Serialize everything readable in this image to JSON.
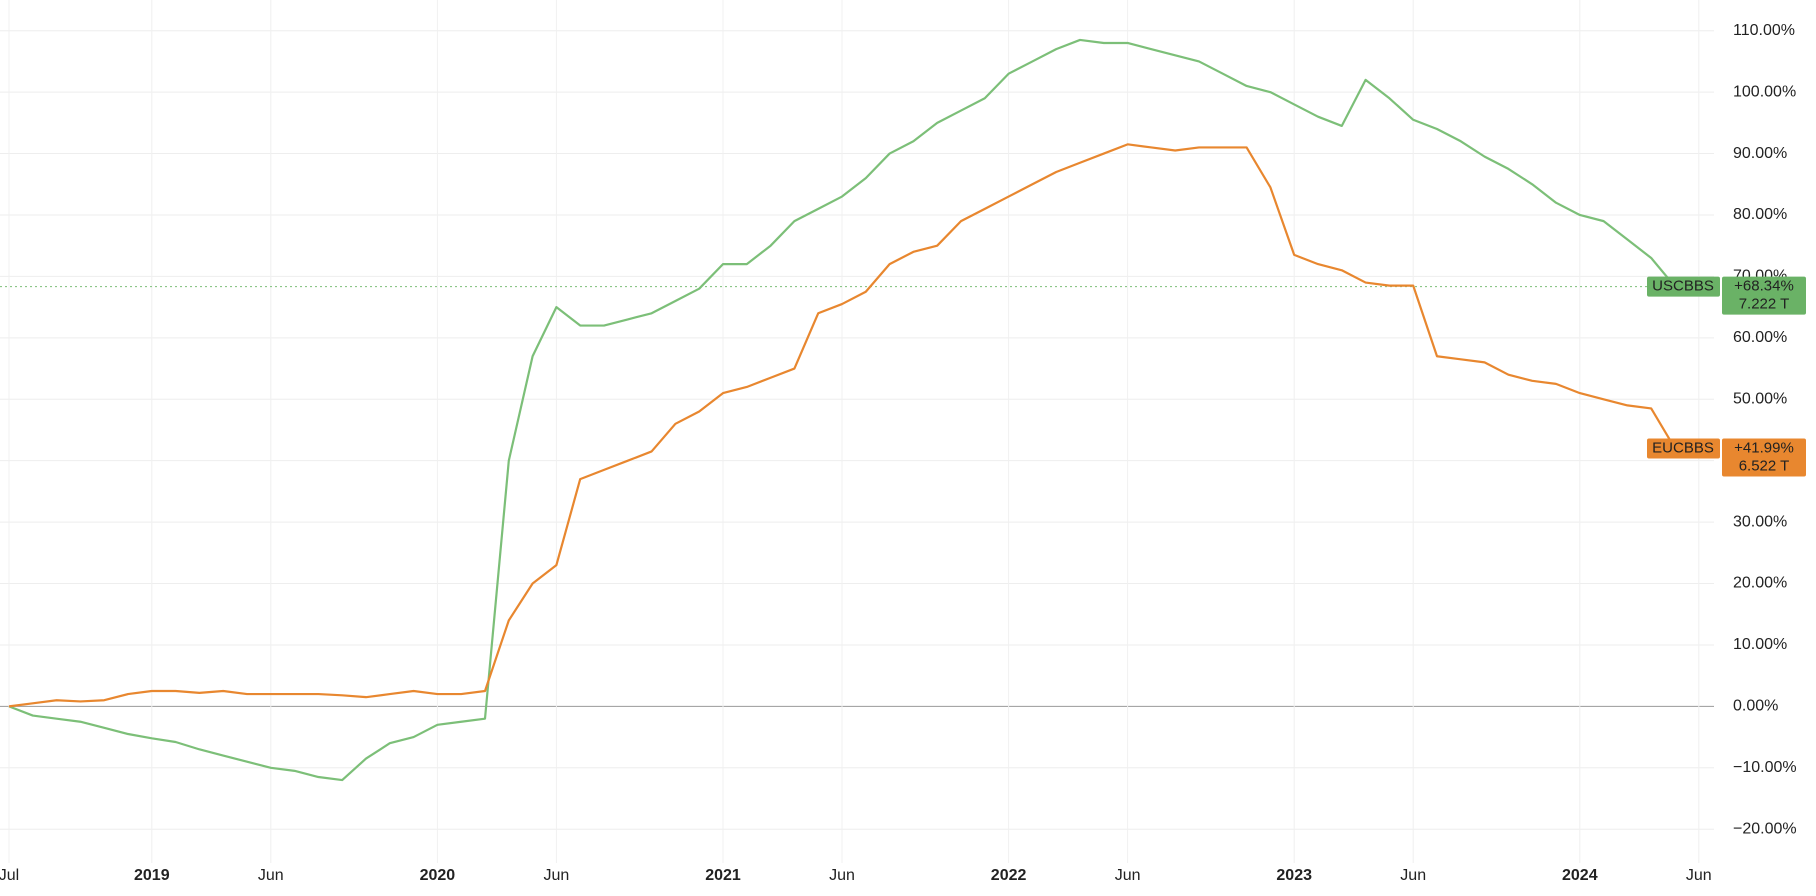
{
  "chart_data": {
    "type": "line",
    "x": [
      "2018-07",
      "2018-08",
      "2018-09",
      "2018-10",
      "2018-11",
      "2018-12",
      "2019-01",
      "2019-02",
      "2019-03",
      "2019-04",
      "2019-05",
      "2019-06",
      "2019-07",
      "2019-08",
      "2019-09",
      "2019-10",
      "2019-11",
      "2019-12",
      "2020-01",
      "2020-02",
      "2020-03",
      "2020-04",
      "2020-05",
      "2020-06",
      "2020-07",
      "2020-08",
      "2020-09",
      "2020-10",
      "2020-11",
      "2020-12",
      "2021-01",
      "2021-02",
      "2021-03",
      "2021-04",
      "2021-05",
      "2021-06",
      "2021-07",
      "2021-08",
      "2021-09",
      "2021-10",
      "2021-11",
      "2021-12",
      "2022-01",
      "2022-02",
      "2022-03",
      "2022-04",
      "2022-05",
      "2022-06",
      "2022-07",
      "2022-08",
      "2022-09",
      "2022-10",
      "2022-11",
      "2022-12",
      "2023-01",
      "2023-02",
      "2023-03",
      "2023-04",
      "2023-05",
      "2023-06",
      "2023-07",
      "2023-08",
      "2023-09",
      "2023-10",
      "2023-11",
      "2023-12",
      "2024-01",
      "2024-02",
      "2024-03",
      "2024-04",
      "2024-05"
    ],
    "series": [
      {
        "name": "USCBBS",
        "color": "#7cbf78",
        "badge_color": "#6ab266",
        "badge_text": "#1a1a1a",
        "end_labels": [
          "+68.34%",
          "7.222 T"
        ],
        "values": [
          0,
          -1.5,
          -2,
          -2.5,
          -3.5,
          -4.5,
          -5.2,
          -5.8,
          -7,
          -8,
          -9,
          -10,
          -10.5,
          -11.5,
          -12,
          -8.5,
          -6,
          -5,
          -3,
          -2.5,
          -2,
          40,
          57,
          65,
          62,
          62,
          63,
          64,
          66,
          68,
          72,
          72,
          75,
          79,
          81,
          83,
          86,
          90,
          92,
          95,
          97,
          99,
          103,
          105,
          107,
          108.5,
          108,
          108,
          107,
          106,
          105,
          103,
          101,
          100,
          98,
          96,
          94.5,
          102,
          99,
          95.5,
          94,
          92,
          89.5,
          87.5,
          85,
          82,
          80,
          79,
          76,
          73,
          68.34
        ]
      },
      {
        "name": "EUCBBS",
        "color": "#e8872f",
        "badge_color": "#e8872f",
        "badge_text": "#ffffff",
        "end_labels": [
          "+41.99%",
          "6.522 T"
        ],
        "values": [
          0,
          0.5,
          1,
          0.8,
          1,
          2,
          2.5,
          2.5,
          2.2,
          2.5,
          2,
          2,
          2,
          2,
          1.8,
          1.5,
          2,
          2.5,
          2,
          2,
          2.5,
          14,
          20,
          23,
          37,
          38.5,
          40,
          41.5,
          46,
          48,
          51,
          52,
          53.5,
          55,
          64,
          65.5,
          67.5,
          72,
          74,
          75,
          79,
          81,
          83,
          85,
          87,
          88.5,
          90,
          91.5,
          91,
          90.5,
          91,
          91,
          91,
          84.5,
          73.5,
          72,
          71,
          69,
          68.5,
          68.5,
          57,
          56.5,
          56,
          54,
          53,
          52.5,
          51,
          50,
          49,
          48.5,
          41.99
        ]
      }
    ],
    "xticks": [
      {
        "value": "2018-07",
        "label": "Jul"
      },
      {
        "value": "2019-01",
        "label": "2019"
      },
      {
        "value": "2019-06",
        "label": "Jun"
      },
      {
        "value": "2020-01",
        "label": "2020"
      },
      {
        "value": "2020-06",
        "label": "Jun"
      },
      {
        "value": "2021-01",
        "label": "2021"
      },
      {
        "value": "2021-06",
        "label": "Jun"
      },
      {
        "value": "2022-01",
        "label": "2022"
      },
      {
        "value": "2022-06",
        "label": "Jun"
      },
      {
        "value": "2023-01",
        "label": "2023"
      },
      {
        "value": "2023-06",
        "label": "Jun"
      },
      {
        "value": "2024-01",
        "label": "2024"
      },
      {
        "value": "2024-06",
        "label": "Jun"
      }
    ],
    "ylim": [
      -25.5,
      115
    ],
    "yticks": [
      {
        "value": -20,
        "label": "−20.00%"
      },
      {
        "value": -10,
        "label": "−10.00%"
      },
      {
        "value": 0,
        "label": "0.00%"
      },
      {
        "value": 10,
        "label": "10.00%"
      },
      {
        "value": 20,
        "label": "20.00%"
      },
      {
        "value": 30,
        "label": "30.00%"
      },
      {
        "value": 40,
        "label": "40.00%"
      },
      {
        "value": 50,
        "label": "50.00%"
      },
      {
        "value": 60,
        "label": "60.00%"
      },
      {
        "value": 70,
        "label": "70.00%"
      },
      {
        "value": 80,
        "label": "80.00%"
      },
      {
        "value": 90,
        "label": "90.00%"
      },
      {
        "value": 100,
        "label": "100.00%"
      },
      {
        "value": 110,
        "label": "110.00%"
      }
    ],
    "grid": true
  }
}
